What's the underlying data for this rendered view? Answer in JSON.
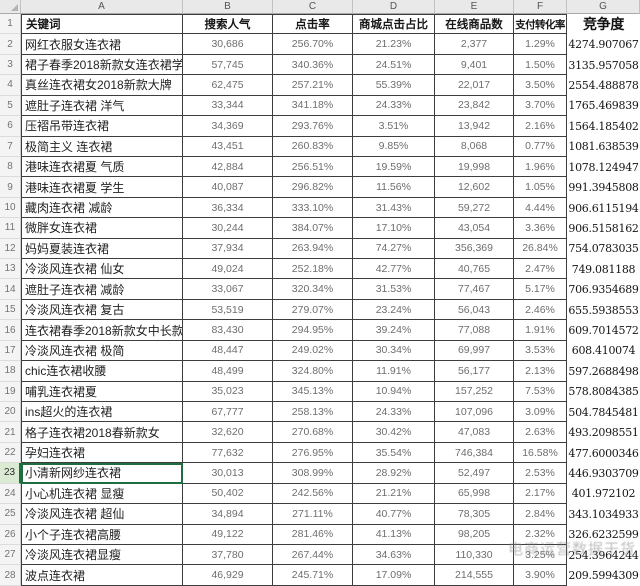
{
  "sheet": {
    "column_letters": [
      "A",
      "B",
      "C",
      "D",
      "E",
      "F",
      "G"
    ],
    "header_row": {
      "n": "1",
      "a": "关键词",
      "b": "搜索人气",
      "c": "点击率",
      "d": "商城点击占比",
      "e": "在线商品数",
      "f": "支付转化率",
      "g": "竞争度"
    },
    "rows": [
      {
        "n": "2",
        "a": "网红衣服女连衣裙",
        "b": "30,686",
        "c": "256.70%",
        "d": "21.23%",
        "e": "2,377",
        "f": "1.29%",
        "g": "4274.907067"
      },
      {
        "n": "3",
        "a": "裙子春季2018新款女连衣裙学生",
        "b": "57,745",
        "c": "340.36%",
        "d": "24.51%",
        "e": "9,401",
        "f": "1.50%",
        "g": "3135.957058"
      },
      {
        "n": "4",
        "a": "真丝连衣裙女2018新款大牌",
        "b": "62,475",
        "c": "257.21%",
        "d": "55.39%",
        "e": "22,017",
        "f": "3.50%",
        "g": "2554.488878"
      },
      {
        "n": "5",
        "a": "遮肚子连衣裙 洋气",
        "b": "33,344",
        "c": "341.18%",
        "d": "24.33%",
        "e": "23,842",
        "f": "3.70%",
        "g": "1765.469839"
      },
      {
        "n": "6",
        "a": "压褶吊带连衣裙",
        "b": "34,369",
        "c": "293.76%",
        "d": "3.51%",
        "e": "13,942",
        "f": "2.16%",
        "g": "1564.185402"
      },
      {
        "n": "7",
        "a": "极简主义 连衣裙",
        "b": "43,451",
        "c": "260.83%",
        "d": "9.85%",
        "e": "8,068",
        "f": "0.77%",
        "g": "1081.638539"
      },
      {
        "n": "8",
        "a": "港味连衣裙夏 气质",
        "b": "42,884",
        "c": "256.51%",
        "d": "19.59%",
        "e": "19,998",
        "f": "1.96%",
        "g": "1078.124947"
      },
      {
        "n": "9",
        "a": "港味连衣裙夏 学生",
        "b": "40,087",
        "c": "296.82%",
        "d": "11.56%",
        "e": "12,602",
        "f": "1.05%",
        "g": "991.3945808"
      },
      {
        "n": "10",
        "a": "藏肉连衣裙 减龄",
        "b": "36,334",
        "c": "333.10%",
        "d": "31.43%",
        "e": "59,272",
        "f": "4.44%",
        "g": "906.6115194"
      },
      {
        "n": "11",
        "a": "微胖女连衣裙",
        "b": "30,244",
        "c": "384.07%",
        "d": "17.10%",
        "e": "43,054",
        "f": "3.36%",
        "g": "906.5158162"
      },
      {
        "n": "12",
        "a": "妈妈夏装连衣裙",
        "b": "37,934",
        "c": "263.94%",
        "d": "74.27%",
        "e": "356,369",
        "f": "26.84%",
        "g": "754.0783035"
      },
      {
        "n": "13",
        "a": "冷淡风连衣裙 仙女",
        "b": "49,024",
        "c": "252.18%",
        "d": "42.77%",
        "e": "40,765",
        "f": "2.47%",
        "g": "749.081188"
      },
      {
        "n": "14",
        "a": "遮肚子连衣裙 减龄",
        "b": "33,067",
        "c": "320.34%",
        "d": "31.53%",
        "e": "77,467",
        "f": "5.17%",
        "g": "706.9354689"
      },
      {
        "n": "15",
        "a": "冷淡风连衣裙 复古",
        "b": "53,519",
        "c": "279.07%",
        "d": "23.24%",
        "e": "56,043",
        "f": "2.46%",
        "g": "655.5938553"
      },
      {
        "n": "16",
        "a": "连衣裙春季2018新款女中长款",
        "b": "83,430",
        "c": "294.95%",
        "d": "39.24%",
        "e": "77,088",
        "f": "1.91%",
        "g": "609.7014572"
      },
      {
        "n": "17",
        "a": "冷淡风连衣裙 极简",
        "b": "48,447",
        "c": "249.02%",
        "d": "30.34%",
        "e": "69,997",
        "f": "3.53%",
        "g": "608.410074"
      },
      {
        "n": "18",
        "a": "chic连衣裙收腰",
        "b": "48,499",
        "c": "324.80%",
        "d": "11.91%",
        "e": "56,177",
        "f": "2.13%",
        "g": "597.2688498"
      },
      {
        "n": "19",
        "a": "哺乳连衣裙夏",
        "b": "35,023",
        "c": "345.13%",
        "d": "10.94%",
        "e": "157,252",
        "f": "7.53%",
        "g": "578.8084385"
      },
      {
        "n": "20",
        "a": "ins超火的连衣裙",
        "b": "67,777",
        "c": "258.13%",
        "d": "24.33%",
        "e": "107,096",
        "f": "3.09%",
        "g": "504.7845481"
      },
      {
        "n": "21",
        "a": "格子连衣裙2018春新款女",
        "b": "32,620",
        "c": "270.68%",
        "d": "30.42%",
        "e": "47,083",
        "f": "2.63%",
        "g": "493.2098551"
      },
      {
        "n": "22",
        "a": "孕妇连衣裙",
        "b": "77,632",
        "c": "276.95%",
        "d": "35.54%",
        "e": "746,384",
        "f": "16.58%",
        "g": "477.6000346"
      },
      {
        "n": "23",
        "a": "小清新网纱连衣裙",
        "b": "30,013",
        "c": "308.99%",
        "d": "28.92%",
        "e": "52,497",
        "f": "2.53%",
        "g": "446.9303709"
      },
      {
        "n": "24",
        "a": "小心机连衣裙 显瘦",
        "b": "50,402",
        "c": "242.56%",
        "d": "21.21%",
        "e": "65,998",
        "f": "2.17%",
        "g": "401.972102"
      },
      {
        "n": "25",
        "a": "冷淡风连衣裙 超仙",
        "b": "34,894",
        "c": "271.11%",
        "d": "40.77%",
        "e": "78,305",
        "f": "2.84%",
        "g": "343.1034933"
      },
      {
        "n": "26",
        "a": "小个子连衣裙高腰",
        "b": "49,122",
        "c": "281.46%",
        "d": "41.13%",
        "e": "98,205",
        "f": "2.32%",
        "g": "326.6232599"
      },
      {
        "n": "27",
        "a": "冷淡风连衣裙显瘦",
        "b": "37,780",
        "c": "267.44%",
        "d": "34.63%",
        "e": "110,330",
        "f": "3.25%",
        "g": "254.3964244"
      },
      {
        "n": "28",
        "a": "波点连衣裙",
        "b": "46,929",
        "c": "245.71%",
        "d": "17.09%",
        "e": "214,555",
        "f": "3.90%",
        "g": "209.5994309"
      }
    ],
    "selected_row": "23"
  },
  "watermark": {
    "text": "电商运营数据干货"
  }
}
